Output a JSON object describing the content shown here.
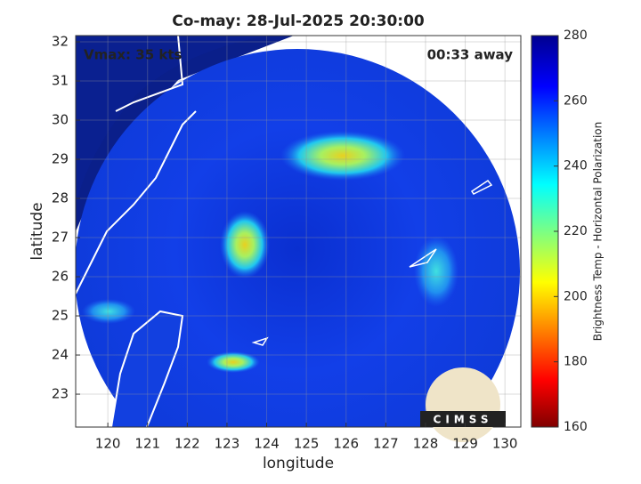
{
  "title": "Co-may: 28-Jul-2025 20:30:00",
  "annotations": {
    "vmax": "Vmax: 35 kts",
    "away": "00:33 away"
  },
  "map": {
    "xlabel": "longitude",
    "ylabel": "latitude",
    "xlim": [
      119.19,
      130.4
    ],
    "ylim": [
      22.16,
      32.16
    ],
    "xticks": [
      120,
      121,
      122,
      123,
      124,
      125,
      126,
      127,
      128,
      129,
      130
    ],
    "yticks": [
      23,
      24,
      25,
      26,
      27,
      28,
      29,
      30,
      31,
      32
    ],
    "grid": true
  },
  "colorbar": {
    "label": "Brightness Temp - Horizontal Polarization",
    "lim": [
      160,
      280
    ],
    "ticks": [
      160,
      180,
      200,
      220,
      240,
      260,
      280
    ]
  },
  "logo": "CIMSS"
}
